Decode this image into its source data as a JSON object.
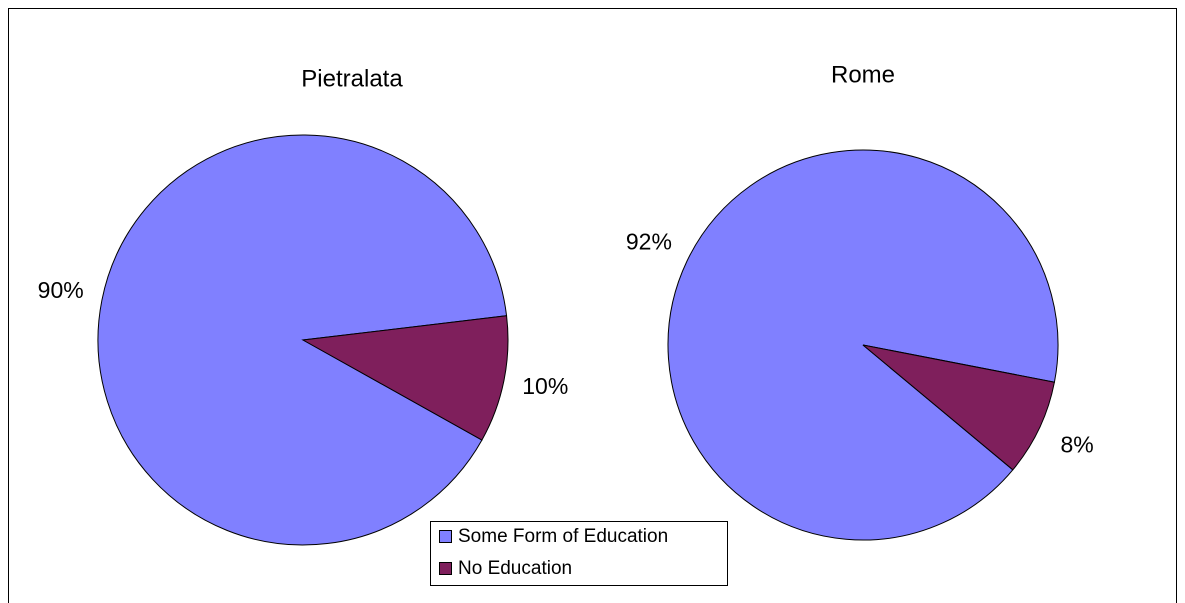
{
  "chart_data": [
    {
      "type": "pie",
      "title": "Pietralata",
      "categories": [
        "Some Form of Education",
        "No Education"
      ],
      "colors": [
        "#8080ff",
        "#7f1f5c"
      ],
      "values": [
        90,
        10
      ],
      "value_labels": [
        "90%",
        "10%"
      ]
    },
    {
      "type": "pie",
      "title": "Rome",
      "values": [
        92,
        8
      ],
      "value_labels": [
        "92%",
        "8%"
      ]
    }
  ]
}
